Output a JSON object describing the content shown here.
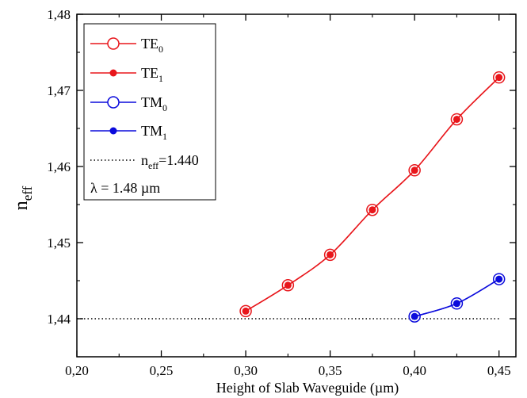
{
  "chart_data": {
    "type": "line",
    "title": "",
    "xlabel": "Height of Slab Waveguide (µm)",
    "ylabel": {
      "main": "n",
      "sub": "eff"
    },
    "xlim": [
      0.2,
      0.46
    ],
    "ylim": [
      1.435,
      1.48
    ],
    "x_ticks": [
      {
        "value": 0.2,
        "label": "0,20"
      },
      {
        "value": 0.25,
        "label": "0,25"
      },
      {
        "value": 0.3,
        "label": "0,30"
      },
      {
        "value": 0.35,
        "label": "0,35"
      },
      {
        "value": 0.4,
        "label": "0,40"
      },
      {
        "value": 0.45,
        "label": "0,45"
      }
    ],
    "y_ticks": [
      {
        "value": 1.44,
        "label": "1,44"
      },
      {
        "value": 1.45,
        "label": "1,45"
      },
      {
        "value": 1.46,
        "label": "1,46"
      },
      {
        "value": 1.47,
        "label": "1,47"
      },
      {
        "value": 1.48,
        "label": "1,48"
      }
    ],
    "grid": false,
    "legend_position": "top-left",
    "series": [
      {
        "name": "TE",
        "sub": "0",
        "color": "#e8161b",
        "marker": "open-circle",
        "line": "solid",
        "x": [
          0.3,
          0.325,
          0.35,
          0.375,
          0.4,
          0.425,
          0.45
        ],
        "y": [
          1.441,
          1.4444,
          1.4484,
          1.4543,
          1.4595,
          1.4662,
          1.4717
        ]
      },
      {
        "name": "TE",
        "sub": "1",
        "color": "#e8161b",
        "marker": "filled-circle",
        "line": "solid",
        "x": [
          0.3,
          0.325,
          0.35,
          0.375,
          0.4,
          0.425,
          0.45
        ],
        "y": [
          1.441,
          1.4444,
          1.4484,
          1.4543,
          1.4595,
          1.4662,
          1.4717
        ]
      },
      {
        "name": "TM",
        "sub": "0",
        "color": "#0b0bdc",
        "marker": "open-circle",
        "line": "solid",
        "x": [
          0.4,
          0.425,
          0.45
        ],
        "y": [
          1.4403,
          1.442,
          1.4452
        ]
      },
      {
        "name": "TM",
        "sub": "1",
        "color": "#0b0bdc",
        "marker": "filled-circle",
        "line": "solid",
        "x": [
          0.4,
          0.425,
          0.45
        ],
        "y": [
          1.4403,
          1.442,
          1.4452
        ]
      }
    ],
    "reference_line": {
      "label_main": "n",
      "label_sub": "eff",
      "label_rest": "=1.440",
      "y": 1.44,
      "x_range": [
        0.2,
        0.45
      ],
      "style": "dotted",
      "color": "#000000"
    },
    "annotation": "λ = 1.48 µm"
  }
}
